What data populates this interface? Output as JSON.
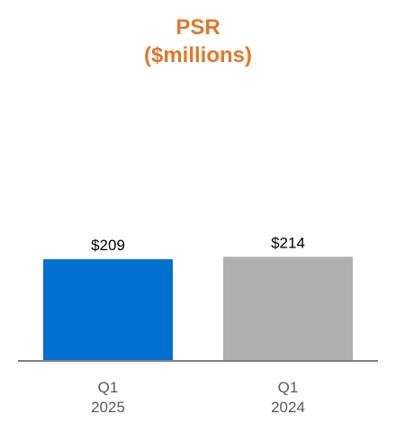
{
  "chart_data": {
    "type": "bar",
    "title_lines": [
      "PSR",
      "($millions)"
    ],
    "categories": [
      {
        "line1": "Q1",
        "line2": "2025"
      },
      {
        "line1": "Q1",
        "line2": "2024"
      }
    ],
    "values": [
      209,
      214
    ],
    "data_labels": [
      "$209",
      "$214"
    ],
    "colors": [
      "#0070D0",
      "#B0B0B0"
    ],
    "title_color": "#E0782A",
    "axis_color": "#808080",
    "label_color": "#000000",
    "tick_label_color": "#595959",
    "ylim": [
      0,
      740
    ],
    "grid": false,
    "legend": "none"
  }
}
